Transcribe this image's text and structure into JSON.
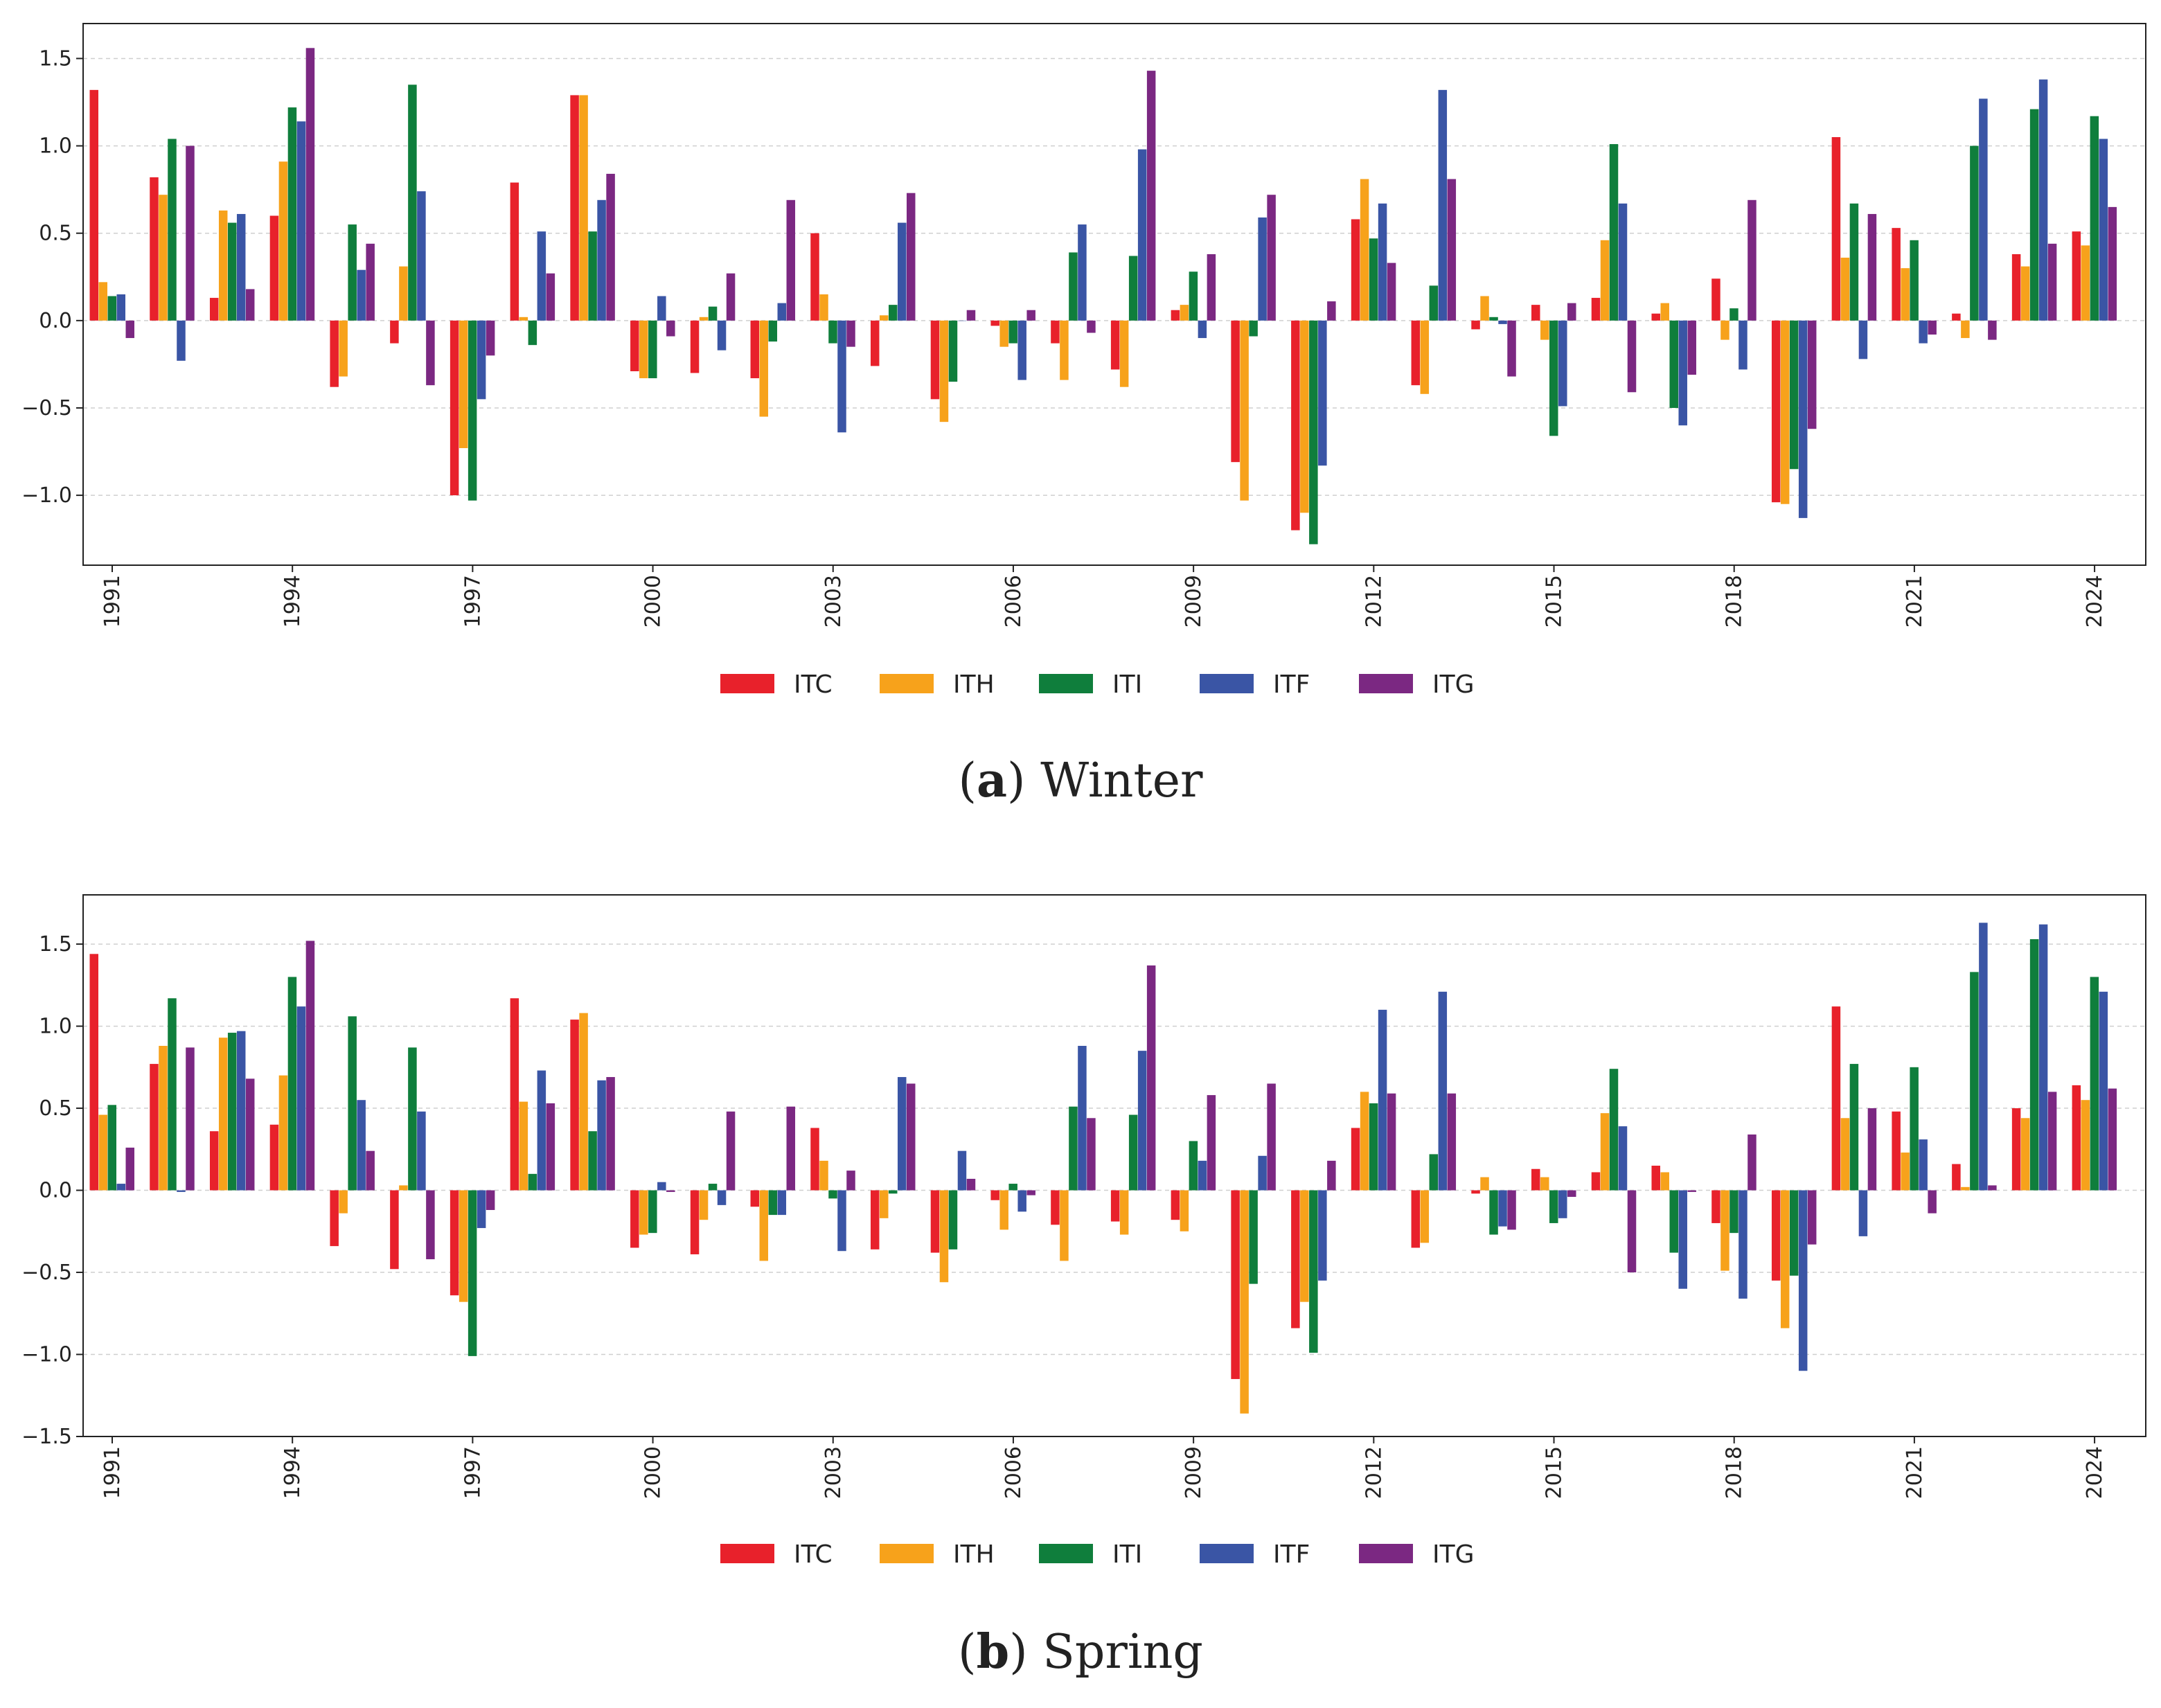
{
  "chart_data": [
    {
      "type": "bar",
      "caption_letter": "a",
      "title": "Winter",
      "xlabel": "",
      "ylabel": "",
      "ylim": [
        -1.4,
        1.7
      ],
      "yticks": [
        -1.0,
        -0.5,
        0.0,
        0.5,
        1.0,
        1.5
      ],
      "ytick_labels": [
        "−1.0",
        "−0.5",
        "0.0",
        "0.5",
        "1.0",
        "1.5"
      ],
      "grid": "horizontal dashed",
      "legend_position": "bottom-center",
      "categories": [
        1991,
        1992,
        1993,
        1994,
        1995,
        1996,
        1997,
        1998,
        1999,
        2000,
        2001,
        2002,
        2003,
        2004,
        2005,
        2006,
        2007,
        2008,
        2009,
        2010,
        2011,
        2012,
        2013,
        2014,
        2015,
        2016,
        2017,
        2018,
        2019,
        2020,
        2021,
        2022,
        2023,
        2024
      ],
      "xtick_labels": [
        "1991",
        "1994",
        "1997",
        "2000",
        "2003",
        "2006",
        "2009",
        "2012",
        "2015",
        "2018",
        "2021",
        "2024"
      ],
      "series": [
        {
          "name": "ITC",
          "color": "#e8212b",
          "values": [
            1.32,
            0.82,
            0.13,
            0.6,
            -0.38,
            -0.13,
            -1.0,
            0.79,
            1.29,
            -0.29,
            -0.3,
            -0.33,
            0.5,
            -0.26,
            -0.45,
            -0.03,
            -0.13,
            -0.28,
            0.06,
            -0.81,
            -1.2,
            0.58,
            -0.37,
            -0.05,
            0.09,
            0.13,
            0.04,
            0.24,
            -1.04,
            1.05,
            0.53,
            0.04,
            0.38,
            0.51
          ]
        },
        {
          "name": "ITH",
          "color": "#f7a21b",
          "values": [
            0.22,
            0.72,
            0.63,
            0.91,
            -0.32,
            0.31,
            -0.73,
            0.02,
            1.29,
            -0.33,
            0.02,
            -0.55,
            0.15,
            0.03,
            -0.58,
            -0.15,
            -0.34,
            -0.38,
            0.09,
            -1.03,
            -1.1,
            0.81,
            -0.42,
            0.14,
            -0.11,
            0.46,
            0.1,
            -0.11,
            -1.05,
            0.36,
            0.3,
            -0.1,
            0.31,
            0.43
          ]
        },
        {
          "name": "ITI",
          "color": "#0f7e3c",
          "values": [
            0.14,
            1.04,
            0.56,
            1.22,
            0.55,
            1.35,
            -1.03,
            -0.14,
            0.51,
            -0.33,
            0.08,
            -0.12,
            -0.13,
            0.09,
            -0.35,
            -0.13,
            0.39,
            0.37,
            0.28,
            -0.09,
            -1.28,
            0.47,
            0.2,
            0.02,
            -0.66,
            1.01,
            -0.5,
            0.07,
            -0.85,
            0.67,
            0.46,
            1.0,
            1.21,
            1.17
          ]
        },
        {
          "name": "ITF",
          "color": "#3a55a5",
          "values": [
            0.15,
            -0.23,
            0.61,
            1.14,
            0.29,
            0.74,
            -0.45,
            0.51,
            0.69,
            0.14,
            -0.17,
            0.1,
            -0.64,
            0.56,
            0.0,
            -0.34,
            0.55,
            0.98,
            -0.1,
            0.59,
            -0.83,
            0.67,
            1.32,
            -0.02,
            -0.49,
            0.67,
            -0.6,
            -0.28,
            -1.13,
            -0.22,
            -0.13,
            1.27,
            1.38,
            1.04
          ]
        },
        {
          "name": "ITG",
          "color": "#7b2882",
          "values": [
            -0.1,
            1.0,
            0.18,
            1.56,
            0.44,
            -0.37,
            -0.2,
            0.27,
            0.84,
            -0.09,
            0.27,
            0.69,
            -0.15,
            0.73,
            0.06,
            0.06,
            -0.07,
            1.43,
            0.38,
            0.72,
            0.11,
            0.33,
            0.81,
            -0.32,
            0.1,
            -0.41,
            -0.31,
            0.69,
            -0.62,
            0.61,
            -0.08,
            -0.11,
            0.44,
            0.65
          ]
        }
      ]
    },
    {
      "type": "bar",
      "caption_letter": "b",
      "title": "Spring",
      "xlabel": "",
      "ylabel": "",
      "ylim": [
        -1.5,
        1.8
      ],
      "yticks": [
        -1.5,
        -1.0,
        -0.5,
        0.0,
        0.5,
        1.0,
        1.5
      ],
      "ytick_labels": [
        "−1.5",
        "−1.0",
        "−0.5",
        "0.0",
        "0.5",
        "1.0",
        "1.5"
      ],
      "grid": "horizontal dashed",
      "legend_position": "bottom-center",
      "categories": [
        1991,
        1992,
        1993,
        1994,
        1995,
        1996,
        1997,
        1998,
        1999,
        2000,
        2001,
        2002,
        2003,
        2004,
        2005,
        2006,
        2007,
        2008,
        2009,
        2010,
        2011,
        2012,
        2013,
        2014,
        2015,
        2016,
        2017,
        2018,
        2019,
        2020,
        2021,
        2022,
        2023,
        2024
      ],
      "xtick_labels": [
        "1991",
        "1994",
        "1997",
        "2000",
        "2003",
        "2006",
        "2009",
        "2012",
        "2015",
        "2018",
        "2021",
        "2024"
      ],
      "series": [
        {
          "name": "ITC",
          "color": "#e8212b",
          "values": [
            1.44,
            0.77,
            0.36,
            0.4,
            -0.34,
            -0.48,
            -0.64,
            1.17,
            1.04,
            -0.35,
            -0.39,
            -0.1,
            0.38,
            -0.36,
            -0.38,
            -0.06,
            -0.21,
            -0.19,
            -0.18,
            -1.15,
            -0.84,
            0.38,
            -0.35,
            -0.02,
            0.13,
            0.11,
            0.15,
            -0.2,
            -0.55,
            1.12,
            0.48,
            0.16,
            0.5,
            0.64
          ]
        },
        {
          "name": "ITH",
          "color": "#f7a21b",
          "values": [
            0.46,
            0.88,
            0.93,
            0.7,
            -0.14,
            0.03,
            -0.68,
            0.54,
            1.08,
            -0.27,
            -0.18,
            -0.43,
            0.18,
            -0.17,
            -0.56,
            -0.24,
            -0.43,
            -0.27,
            -0.25,
            -1.36,
            -0.68,
            0.6,
            -0.32,
            0.08,
            0.08,
            0.47,
            0.11,
            -0.49,
            -0.84,
            0.44,
            0.23,
            0.02,
            0.44,
            0.55
          ]
        },
        {
          "name": "ITI",
          "color": "#0f7e3c",
          "values": [
            0.52,
            1.17,
            0.96,
            1.3,
            1.06,
            0.87,
            -1.01,
            0.1,
            0.36,
            -0.26,
            0.04,
            -0.15,
            -0.05,
            -0.02,
            -0.36,
            0.04,
            0.51,
            0.46,
            0.3,
            -0.57,
            -0.99,
            0.53,
            0.22,
            -0.27,
            -0.2,
            0.74,
            -0.38,
            -0.26,
            -0.52,
            0.77,
            0.75,
            1.33,
            1.53,
            1.3
          ]
        },
        {
          "name": "ITF",
          "color": "#3a55a5",
          "values": [
            0.04,
            -0.01,
            0.97,
            1.12,
            0.55,
            0.48,
            -0.23,
            0.73,
            0.67,
            0.05,
            -0.09,
            -0.15,
            -0.37,
            0.69,
            0.24,
            -0.13,
            0.88,
            0.85,
            0.18,
            0.21,
            -0.55,
            1.1,
            1.21,
            -0.22,
            -0.17,
            0.39,
            -0.6,
            -0.66,
            -1.1,
            -0.28,
            0.31,
            1.63,
            1.62,
            1.21
          ]
        },
        {
          "name": "ITG",
          "color": "#7b2882",
          "values": [
            0.26,
            0.87,
            0.68,
            1.52,
            0.24,
            -0.42,
            -0.12,
            0.53,
            0.69,
            -0.01,
            0.48,
            0.51,
            0.12,
            0.65,
            0.07,
            -0.03,
            0.44,
            1.37,
            0.58,
            0.65,
            0.18,
            0.59,
            0.59,
            -0.24,
            -0.04,
            -0.5,
            -0.01,
            0.34,
            -0.33,
            0.5,
            -0.14,
            0.03,
            0.6,
            0.62
          ]
        }
      ]
    }
  ]
}
